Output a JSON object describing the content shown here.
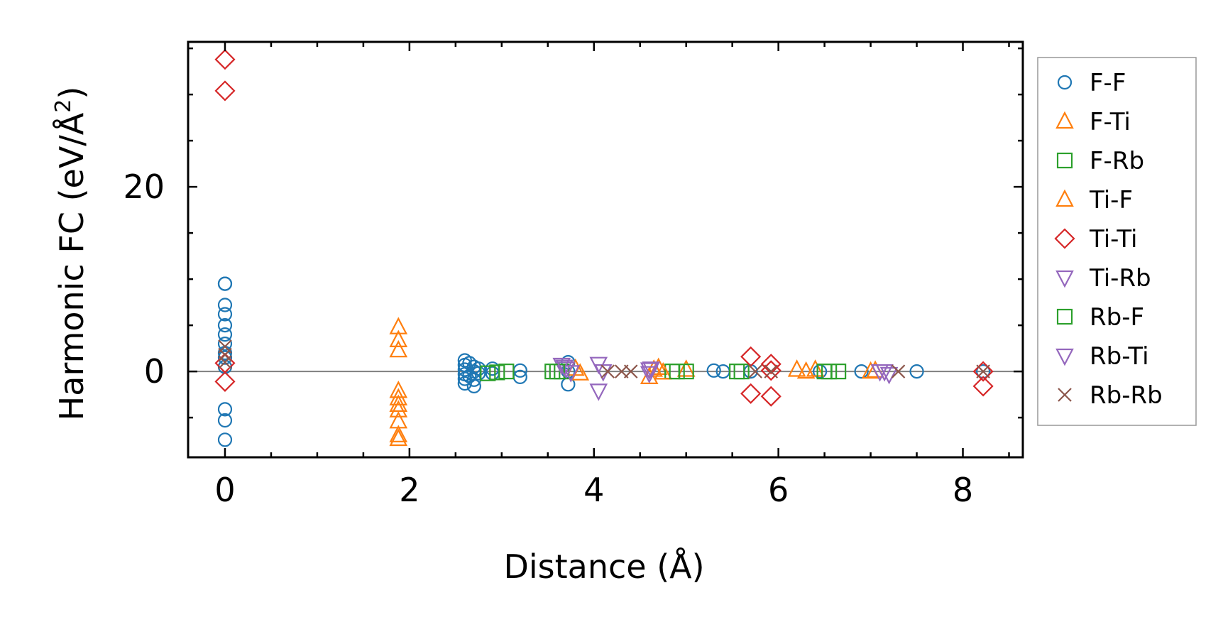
{
  "chart_data": {
    "type": "scatter",
    "xlabel": "Distance (Å)",
    "ylabel_main": "Harmonic FC (eV/Å",
    "ylabel_sup": "2",
    "ylabel_close": ")",
    "xlim": [
      -0.4,
      8.65
    ],
    "ylim": [
      -9.3,
      35.7
    ],
    "xticks": [
      0,
      2,
      4,
      6,
      8
    ],
    "xtick_labels": [
      "0",
      "2",
      "4",
      "6",
      "8"
    ],
    "yticks": [
      0,
      20
    ],
    "ytick_labels": [
      "0",
      "20"
    ],
    "x_minor_step": 0.5,
    "y_minor_step": 5,
    "zero_line": true,
    "legend_position": "outside-right",
    "series": [
      {
        "name": "F-F",
        "marker": "circle",
        "color": "#1f77b4",
        "points": [
          [
            0,
            9.5
          ],
          [
            0,
            9.5
          ],
          [
            0,
            7.2
          ],
          [
            0,
            6.2
          ],
          [
            0,
            5.0
          ],
          [
            0,
            4.0
          ],
          [
            0,
            3.0
          ],
          [
            0,
            2.0
          ],
          [
            0,
            1.5
          ],
          [
            0,
            0.5
          ],
          [
            0,
            -4.1
          ],
          [
            0,
            -5.3
          ],
          [
            0,
            -7.4
          ],
          [
            2.6,
            1.2
          ],
          [
            2.6,
            0.7
          ],
          [
            2.6,
            0.2
          ],
          [
            2.6,
            -0.3
          ],
          [
            2.6,
            -0.8
          ],
          [
            2.6,
            -1.3
          ],
          [
            2.65,
            0.9
          ],
          [
            2.65,
            -0.5
          ],
          [
            2.7,
            0.5
          ],
          [
            2.7,
            0.0
          ],
          [
            2.7,
            -0.9
          ],
          [
            2.7,
            -1.6
          ],
          [
            2.75,
            0.3
          ],
          [
            2.75,
            -0.2
          ],
          [
            2.9,
            0.3
          ],
          [
            2.9,
            -0.2
          ],
          [
            3.2,
            0.1
          ],
          [
            3.2,
            -0.6
          ],
          [
            3.72,
            1.0
          ],
          [
            3.72,
            -1.4
          ],
          [
            3.72,
            0.0
          ],
          [
            5.3,
            0.1
          ],
          [
            5.4,
            0.0
          ],
          [
            5.7,
            0.0
          ],
          [
            6.45,
            0.0
          ],
          [
            6.9,
            0.0
          ],
          [
            7.5,
            0.0
          ],
          [
            8.22,
            0.0
          ]
        ]
      },
      {
        "name": "F-Ti",
        "marker": "triangle-up",
        "color": "#ff7f0e",
        "points": [
          [
            1.88,
            4.8
          ],
          [
            1.88,
            3.4
          ],
          [
            1.88,
            2.3
          ],
          [
            1.88,
            -2.1
          ],
          [
            1.88,
            -2.9
          ],
          [
            1.88,
            -3.6
          ],
          [
            1.88,
            -4.2
          ],
          [
            1.88,
            -5.4
          ],
          [
            1.88,
            -6.9
          ],
          [
            1.88,
            -7.3
          ],
          [
            3.8,
            0.3
          ],
          [
            4.7,
            0.4
          ],
          [
            5.0,
            0.2
          ],
          [
            6.2,
            0.2
          ],
          [
            6.4,
            0.2
          ],
          [
            7.05,
            0.1
          ]
        ]
      },
      {
        "name": "F-Rb",
        "marker": "square",
        "color": "#2ca02c",
        "points": [
          [
            2.85,
            -0.2
          ],
          [
            2.95,
            -0.1
          ],
          [
            3.05,
            0.0
          ],
          [
            3.55,
            0.0
          ],
          [
            3.65,
            0.0
          ],
          [
            4.85,
            0.0
          ],
          [
            5.0,
            0.0
          ],
          [
            5.6,
            0.0
          ],
          [
            6.55,
            0.0
          ],
          [
            6.65,
            0.0
          ]
        ]
      },
      {
        "name": "Ti-F",
        "marker": "triangle-up",
        "color": "#ff7f0e",
        "points": [
          [
            3.85,
            -0.2
          ],
          [
            4.6,
            -0.6
          ],
          [
            4.65,
            0.2
          ],
          [
            4.75,
            -0.1
          ],
          [
            6.3,
            0.0
          ],
          [
            7.0,
            0.0
          ]
        ]
      },
      {
        "name": "Ti-Ti",
        "marker": "diamond",
        "color": "#d62728",
        "points": [
          [
            0,
            33.8
          ],
          [
            0,
            30.4
          ],
          [
            0,
            0.9
          ],
          [
            0,
            -1.1
          ],
          [
            5.7,
            1.6
          ],
          [
            5.7,
            -2.4
          ],
          [
            5.92,
            0.8
          ],
          [
            5.92,
            0.1
          ],
          [
            5.92,
            -2.7
          ],
          [
            8.22,
            0.0
          ],
          [
            8.22,
            -1.6
          ]
        ]
      },
      {
        "name": "Ti-Rb",
        "marker": "triangle-down",
        "color": "#9467bd",
        "points": [
          [
            3.65,
            0.7
          ],
          [
            3.7,
            0.3
          ],
          [
            3.75,
            -0.1
          ],
          [
            4.05,
            0.8
          ],
          [
            4.05,
            -2.1
          ],
          [
            4.1,
            0.0
          ],
          [
            4.6,
            0.2
          ],
          [
            4.6,
            -0.2
          ],
          [
            7.1,
            0.0
          ],
          [
            7.2,
            -0.3
          ]
        ]
      },
      {
        "name": "Rb-F",
        "marker": "square",
        "color": "#2ca02c",
        "points": [
          [
            3.6,
            0.0
          ],
          [
            4.9,
            0.0
          ],
          [
            5.55,
            0.0
          ],
          [
            6.5,
            0.0
          ]
        ]
      },
      {
        "name": "Rb-Ti",
        "marker": "triangle-down",
        "color": "#9467bd",
        "points": [
          [
            3.68,
            0.5
          ],
          [
            4.62,
            0.3
          ],
          [
            7.15,
            0.0
          ]
        ]
      },
      {
        "name": "Rb-Rb",
        "marker": "cross",
        "color": "#8c564b",
        "points": [
          [
            0,
            2.7
          ],
          [
            0,
            1.8
          ],
          [
            0,
            1.0
          ],
          [
            4.15,
            0.0
          ],
          [
            4.3,
            0.0
          ],
          [
            4.4,
            0.0
          ],
          [
            5.75,
            0.0
          ],
          [
            5.92,
            0.0
          ],
          [
            7.3,
            0.0
          ],
          [
            8.22,
            0.0
          ]
        ]
      }
    ]
  }
}
